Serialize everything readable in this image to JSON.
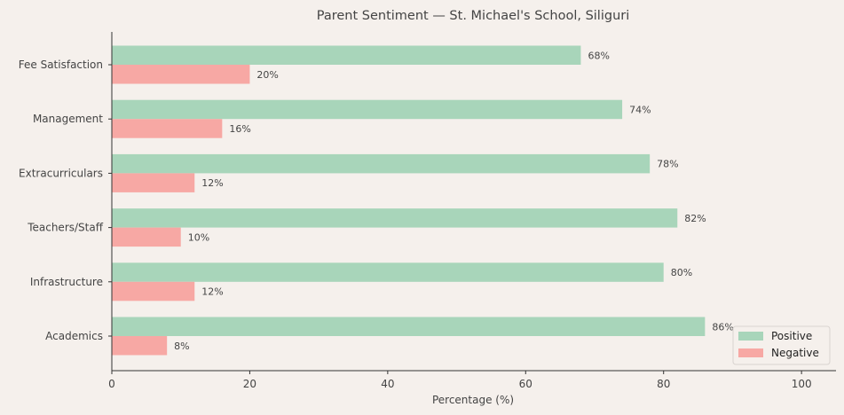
{
  "chart_data": {
    "type": "bar",
    "orientation": "horizontal",
    "title": "Parent Sentiment — St. Michael's School, Siliguri",
    "xlabel": "Percentage (%)",
    "ylabel": "",
    "categories": [
      "Academics",
      "Infrastructure",
      "Teachers/Staff",
      "Extracurriculars",
      "Management",
      "Fee Satisfaction"
    ],
    "series": [
      {
        "name": "Positive",
        "values": [
          86,
          80,
          82,
          78,
          74,
          68
        ],
        "labels": [
          "86%",
          "80%",
          "82%",
          "78%",
          "74%",
          "68%"
        ],
        "color": "#a8d5ba"
      },
      {
        "name": "Negative",
        "values": [
          8,
          12,
          10,
          12,
          16,
          20
        ],
        "labels": [
          "8%",
          "12%",
          "10%",
          "12%",
          "16%",
          "20%"
        ],
        "color": "#f7a8a4"
      }
    ],
    "xlim": [
      0,
      105
    ],
    "xticks": [
      0,
      20,
      40,
      60,
      80,
      100
    ],
    "xtick_labels": [
      "0",
      "20",
      "40",
      "60",
      "80",
      "100"
    ],
    "grid": false,
    "legend_position": "lower-right"
  }
}
